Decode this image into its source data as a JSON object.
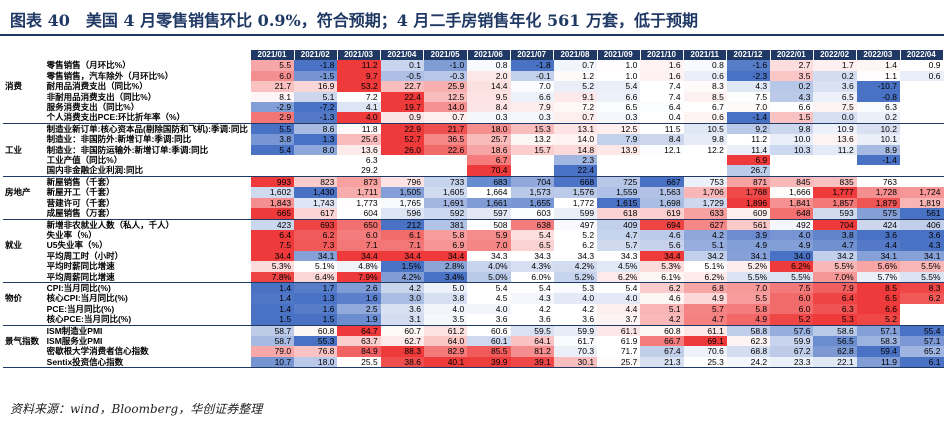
{
  "title": "图表 40　美国 4 月零售销售环比 0.9%，符合预期；4 月二手房销售年化 561 万套，低于预期",
  "source": "资料来源：wind，Bloomberg，华创证券整理",
  "colors": {
    "header": "#1f3864",
    "blue_max": "#4a72c4",
    "red_max": "#ee3a3a"
  },
  "columns": [
    "2021/01",
    "2021/02",
    "2021/03",
    "2021/04",
    "2021/05",
    "2021/06",
    "2021/07",
    "2021/08",
    "2021/09",
    "2021/10",
    "2021/11",
    "2021/12",
    "2022/01",
    "2022/02",
    "2022/03",
    "2022/04"
  ],
  "groups": [
    {
      "name": "消费",
      "rows": [
        {
          "label": "零售销售（月环比%）",
          "values": [
            "5.5",
            "-1.8",
            "11.2",
            "0.1",
            "-1.0",
            "0.8",
            "-1.8",
            "0.7",
            "1.0",
            "1.6",
            "0.8",
            "-1.6",
            "2.7",
            "1.7",
            "1.4",
            "0.9"
          ]
        },
        {
          "label": "零售销售，汽车除外（月环比%）",
          "values": [
            "6.0",
            "-1.5",
            "9.7",
            "-0.5",
            "-0.3",
            "2.0",
            "-0.1",
            "1.2",
            "1.0",
            "1.6",
            "0.6",
            "-2.3",
            "3.5",
            "0.2",
            "1.1",
            "0.6"
          ]
        },
        {
          "label": "耐用品消费支出（同比%）",
          "values": [
            "21.7",
            "16.9",
            "53.2",
            "22.7",
            "25.9",
            "14.4",
            "7.0",
            "5.2",
            "5.4",
            "7.4",
            "8.3",
            "4.3",
            "0.2",
            "3.6",
            "-10.7",
            ""
          ]
        },
        {
          "label": "非耐用品消费支出（同比%）",
          "values": [
            "8.1",
            "5.1",
            "7.2",
            "22.4",
            "12.5",
            "9.5",
            "6.6",
            "9.1",
            "6.6",
            "7.4",
            "8.5",
            "7.5",
            "4.3",
            "6.5",
            "-0.8",
            ""
          ]
        },
        {
          "label": "服务消费支出（同比%）",
          "values": [
            "-2.9",
            "-7.2",
            "4.1",
            "19.7",
            "14.0",
            "8.4",
            "7.9",
            "7.2",
            "6.5",
            "6.4",
            "6.7",
            "7.0",
            "6.6",
            "7.5",
            "6.3",
            ""
          ]
        },
        {
          "label": "个人消费支出PCE:环比折年率（%）",
          "values": [
            "2.9",
            "-1.3",
            "4.0",
            "0.9",
            "0.7",
            "0.3",
            "0.3",
            "0.7",
            "0.3",
            "0.4",
            "0.6",
            "-1.4",
            "1.5",
            "0.0",
            "0.2",
            ""
          ]
        }
      ]
    },
    {
      "name": "工业",
      "rows": [
        {
          "label": "制造业新订单:核心资本品(剔除国防和飞机):季调:同比",
          "values": [
            "5.5",
            "8.6",
            "11.8",
            "22.9",
            "21.7",
            "18.0",
            "15.3",
            "13.1",
            "12.5",
            "11.5",
            "10.5",
            "9.2",
            "9.8",
            "10.9",
            "10.2",
            ""
          ]
        },
        {
          "label": "制造业：非国防外:新增订单:季调:同比",
          "values": [
            "3.8",
            "1.3",
            "25.6",
            "52.7",
            "36.5",
            "25.7",
            "13.2",
            "14.0",
            "7.9",
            "8.4",
            "9.8",
            "11.2",
            "10.0",
            "13.6",
            "10.1",
            ""
          ]
        },
        {
          "label": "制造业：非国防运输外:新增订单:季调:同比",
          "values": [
            "5.4",
            "8.0",
            "13.6",
            "26.0",
            "22.6",
            "18.6",
            "15.7",
            "14.8",
            "13.9",
            "12.1",
            "12.2",
            "11.4",
            "10.3",
            "11.2",
            "8.9",
            ""
          ]
        },
        {
          "label": "工业产值（同比%）",
          "values": [
            "",
            "",
            "6.3",
            "",
            "",
            "6.7",
            "",
            "2.3",
            "",
            "",
            "",
            "6.9",
            "",
            "",
            "-1.4",
            ""
          ]
        },
        {
          "label": "国内非金融企业利润:同比",
          "values": [
            "",
            "",
            "29.2",
            "",
            "",
            "70.4",
            "",
            "22.4",
            "",
            "",
            "",
            "26.7",
            "",
            "",
            "",
            ""
          ]
        }
      ]
    },
    {
      "name": "房地产",
      "rows": [
        {
          "label": "新屋销售（千套）",
          "values": [
            "993",
            "823",
            "873",
            "796",
            "733",
            "683",
            "704",
            "668",
            "725",
            "667",
            "753",
            "871",
            "845",
            "835",
            "763",
            ""
          ]
        },
        {
          "label": "新屋开工（千套）",
          "values": [
            "1,602",
            "1,430",
            "1,711",
            "1,505",
            "1,605",
            "1,664",
            "1,573",
            "1,576",
            "1,559",
            "1,563",
            "1,706",
            "1,768",
            "1,666",
            "1,777",
            "1,728",
            "1,724"
          ]
        },
        {
          "label": "营建许可（千套）",
          "values": [
            "1,843",
            "1,743",
            "1,773",
            "1,765",
            "1,691",
            "1,661",
            "1,655",
            "1,772",
            "1,615",
            "1,698",
            "1,729",
            "1,896",
            "1,841",
            "1,857",
            "1,879",
            "1,819"
          ]
        },
        {
          "label": "成屋销售（万套）",
          "values": [
            "665",
            "617",
            "604",
            "596",
            "592",
            "597",
            "603",
            "599",
            "618",
            "619",
            "633",
            "609",
            "648",
            "593",
            "575",
            "561"
          ]
        }
      ]
    },
    {
      "name": "就业",
      "rows": [
        {
          "label": "新增非农就业人数（私人，千人）",
          "values": [
            "423",
            "693",
            "650",
            "212",
            "381",
            "508",
            "638",
            "497",
            "409",
            "694",
            "627",
            "561",
            "492",
            "704",
            "424",
            "406"
          ]
        },
        {
          "label": "失业率（%）",
          "values": [
            "6.4",
            "6.2",
            "6.0",
            "6.1",
            "5.8",
            "5.9",
            "5.4",
            "5.2",
            "4.7",
            "4.6",
            "4.2",
            "3.9",
            "4.0",
            "3.8",
            "3.6",
            "3.6"
          ]
        },
        {
          "label": "U5失业率（%）",
          "values": [
            "7.5",
            "7.3",
            "7.1",
            "7.1",
            "6.9",
            "7.0",
            "6.5",
            "6.2",
            "5.7",
            "5.6",
            "5.1",
            "4.9",
            "4.9",
            "4.7",
            "4.4",
            "4.3"
          ]
        },
        {
          "label": "平均周工时（小时）",
          "values": [
            "34.4",
            "34.1",
            "34.4",
            "34.4",
            "34.4",
            "34.3",
            "34.3",
            "34.3",
            "34.3",
            "34.4",
            "34.2",
            "34.1",
            "34.0",
            "34.2",
            "34.1",
            "34.1"
          ]
        },
        {
          "label": "平均时薪同比增速",
          "values": [
            "5.3%",
            "5.1%",
            "4.8%",
            "1.5%",
            "2.8%",
            "4.0%",
            "4.3%",
            "4.2%",
            "4.5%",
            "5.3%",
            "5.1%",
            "5.2%",
            "6.2%",
            "5.5%",
            "5.6%",
            "5.5%"
          ]
        },
        {
          "label": "平均周薪同比增速",
          "values": [
            "7.8%",
            "6.4%",
            "7.9%",
            "4.2%",
            "3.4%",
            "5.0%",
            "6.0%",
            "5.2%",
            "6.2%",
            "6.1%",
            "6.2%",
            "5.5%",
            "5.5%",
            "7.0%",
            "5.7%",
            "5.5%"
          ]
        }
      ]
    },
    {
      "name": "物价",
      "rows": [
        {
          "label": "CPI:当月同比(%)",
          "values": [
            "1.4",
            "1.7",
            "2.6",
            "4.2",
            "5.0",
            "5.4",
            "5.4",
            "5.3",
            "5.4",
            "6.2",
            "6.8",
            "7.0",
            "7.5",
            "7.9",
            "8.5",
            "8.3"
          ]
        },
        {
          "label": "核心CPI:当月同比(%)",
          "values": [
            "1.4",
            "1.3",
            "1.6",
            "3.0",
            "3.8",
            "4.5",
            "4.3",
            "4.0",
            "4.0",
            "4.6",
            "4.9",
            "5.5",
            "6.0",
            "6.4",
            "6.5",
            "6.2"
          ]
        },
        {
          "label": "PCE:当月同比(%)",
          "values": [
            "1.4",
            "1.6",
            "2.5",
            "3.6",
            "4.0",
            "4.0",
            "4.2",
            "4.2",
            "4.4",
            "5.1",
            "5.7",
            "5.8",
            "6.0",
            "6.3",
            "6.6",
            ""
          ]
        },
        {
          "label": "核心PCE:当月同比(%)",
          "values": [
            "1.5",
            "1.5",
            "1.9",
            "3.1",
            "3.5",
            "3.6",
            "3.6",
            "3.6",
            "3.7",
            "4.2",
            "4.7",
            "4.9",
            "5.2",
            "5.3",
            "5.2",
            ""
          ]
        }
      ]
    },
    {
      "name": "景气指数",
      "rows": [
        {
          "label": "ISM制造业PMI",
          "values": [
            "58.7",
            "60.8",
            "64.7",
            "60.7",
            "61.2",
            "60.6",
            "59.5",
            "59.9",
            "61.1",
            "60.8",
            "61.1",
            "58.8",
            "57.6",
            "58.6",
            "57.1",
            "55.4"
          ]
        },
        {
          "label": "ISM服务业PMI",
          "values": [
            "58.7",
            "55.3",
            "63.7",
            "62.7",
            "64.0",
            "60.1",
            "64.1",
            "61.7",
            "61.9",
            "66.7",
            "69.1",
            "62.3",
            "59.9",
            "56.5",
            "58.3",
            "57.1"
          ]
        },
        {
          "label": "密歇根大学消费者信心指数",
          "values": [
            "79.0",
            "76.8",
            "84.9",
            "88.3",
            "82.9",
            "85.5",
            "81.2",
            "70.3",
            "71.7",
            "67.4",
            "70.6",
            "68.8",
            "67.2",
            "62.8",
            "59.4",
            "65.2"
          ]
        },
        {
          "label": "Sentix投资信心指数",
          "values": [
            "10.7",
            "18.0",
            "25.5",
            "38.6",
            "40.1",
            "39.9",
            "39.1",
            "30.1",
            "25.7",
            "21.3",
            "25.3",
            "24.2",
            "23.3",
            "22.1",
            "11.9",
            "6.1"
          ]
        }
      ]
    }
  ]
}
